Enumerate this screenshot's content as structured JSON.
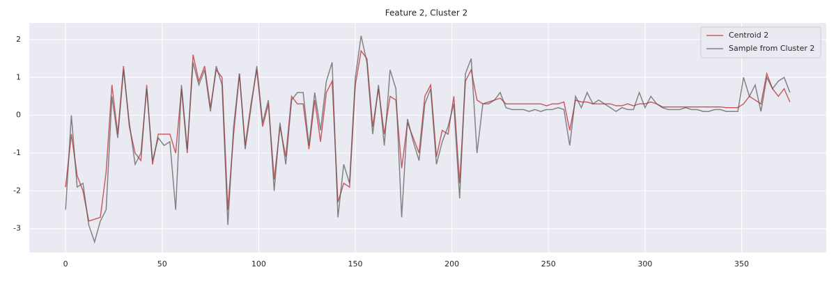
{
  "chart_data": {
    "type": "line",
    "title": "Feature 2, Cluster 2",
    "x": [
      0,
      3,
      6,
      9,
      12,
      15,
      18,
      21,
      24,
      27,
      30,
      33,
      36,
      39,
      42,
      45,
      48,
      51,
      54,
      57,
      60,
      63,
      66,
      69,
      72,
      75,
      78,
      81,
      84,
      87,
      90,
      93,
      96,
      99,
      102,
      105,
      108,
      111,
      114,
      117,
      120,
      123,
      126,
      129,
      132,
      135,
      138,
      141,
      144,
      147,
      150,
      153,
      156,
      159,
      162,
      165,
      168,
      171,
      174,
      177,
      180,
      183,
      186,
      189,
      192,
      195,
      198,
      201,
      204,
      207,
      210,
      213,
      216,
      219,
      222,
      225,
      228,
      231,
      234,
      237,
      240,
      243,
      246,
      249,
      252,
      255,
      258,
      261,
      264,
      267,
      270,
      273,
      276,
      279,
      282,
      285,
      288,
      291,
      294,
      297,
      300,
      303,
      306,
      309,
      312,
      315,
      318,
      321,
      324,
      327,
      330,
      333,
      336,
      339,
      342,
      345,
      348,
      351,
      354,
      357,
      360,
      363,
      366,
      369,
      372,
      375
    ],
    "series": [
      {
        "name": "Centroid 2",
        "color": "#c44e52",
        "values": [
          -1.9,
          -0.5,
          -1.6,
          -2.0,
          -2.8,
          -2.75,
          -2.7,
          -1.5,
          0.8,
          -0.5,
          1.3,
          -0.3,
          -1.0,
          -1.2,
          0.8,
          -1.3,
          -0.5,
          -0.5,
          -0.5,
          -1.0,
          0.7,
          -1.0,
          1.6,
          0.9,
          1.3,
          0.2,
          1.2,
          1.0,
          -2.5,
          -0.5,
          1.1,
          -0.8,
          0.3,
          1.2,
          -0.3,
          0.3,
          -1.7,
          -0.3,
          -1.1,
          0.5,
          0.3,
          0.3,
          -0.9,
          0.4,
          -0.7,
          0.6,
          0.9,
          -2.3,
          -1.8,
          -1.9,
          0.8,
          1.7,
          1.5,
          -0.3,
          0.7,
          -0.5,
          0.5,
          0.4,
          -1.4,
          -0.2,
          -0.6,
          -1.0,
          0.5,
          0.8,
          -1.1,
          -0.4,
          -0.5,
          0.5,
          -1.8,
          0.9,
          1.2,
          0.4,
          0.3,
          0.35,
          0.4,
          0.45,
          0.3,
          0.3,
          0.3,
          0.3,
          0.3,
          0.3,
          0.3,
          0.25,
          0.3,
          0.3,
          0.35,
          -0.4,
          0.4,
          0.35,
          0.35,
          0.3,
          0.3,
          0.3,
          0.3,
          0.25,
          0.25,
          0.3,
          0.25,
          0.3,
          0.3,
          0.35,
          0.3,
          0.22,
          0.22,
          0.22,
          0.22,
          0.22,
          0.22,
          0.22,
          0.22,
          0.22,
          0.22,
          0.22,
          0.2,
          0.2,
          0.2,
          0.3,
          0.5,
          0.4,
          0.3,
          1.1,
          0.7,
          0.5,
          0.7,
          0.35
        ]
      },
      {
        "name": "Sample from Cluster 2",
        "color": "#555555",
        "values": [
          -2.5,
          0.0,
          -1.9,
          -1.8,
          -2.9,
          -3.35,
          -2.8,
          -2.5,
          0.5,
          -0.6,
          1.2,
          -0.2,
          -1.3,
          -1.0,
          0.7,
          -1.2,
          -0.6,
          -0.8,
          -0.7,
          -2.5,
          0.8,
          -0.9,
          1.4,
          0.8,
          1.2,
          0.1,
          1.3,
          0.8,
          -2.9,
          -0.3,
          1.1,
          -0.9,
          0.2,
          1.3,
          -0.2,
          0.4,
          -2.0,
          -0.2,
          -1.3,
          0.4,
          0.6,
          0.6,
          -0.8,
          0.6,
          -0.4,
          0.9,
          1.4,
          -2.7,
          -1.3,
          -1.8,
          1.0,
          2.1,
          1.4,
          -0.5,
          0.8,
          -0.8,
          1.2,
          0.7,
          -2.7,
          -0.1,
          -0.7,
          -1.2,
          0.3,
          0.7,
          -1.3,
          -0.7,
          -0.3,
          0.3,
          -2.2,
          1.1,
          1.5,
          -1.0,
          0.3,
          0.3,
          0.4,
          0.6,
          0.2,
          0.15,
          0.15,
          0.15,
          0.1,
          0.15,
          0.1,
          0.15,
          0.15,
          0.2,
          0.15,
          -0.8,
          0.5,
          0.2,
          0.6,
          0.3,
          0.4,
          0.3,
          0.2,
          0.1,
          0.2,
          0.15,
          0.15,
          0.6,
          0.2,
          0.5,
          0.3,
          0.2,
          0.15,
          0.15,
          0.15,
          0.2,
          0.15,
          0.15,
          0.1,
          0.1,
          0.15,
          0.15,
          0.1,
          0.1,
          0.1,
          1.0,
          0.5,
          0.8,
          0.1,
          1.0,
          0.7,
          0.9,
          1.0,
          0.6
        ]
      }
    ],
    "xlim": [
      -18.8,
      393.8
    ],
    "ylim": [
      -3.63,
      2.44
    ],
    "xticks": [
      0,
      50,
      100,
      150,
      200,
      250,
      300,
      350
    ],
    "yticks": [
      -3,
      -2,
      -1,
      0,
      1,
      2
    ],
    "grid": true,
    "legend": "upper right"
  }
}
